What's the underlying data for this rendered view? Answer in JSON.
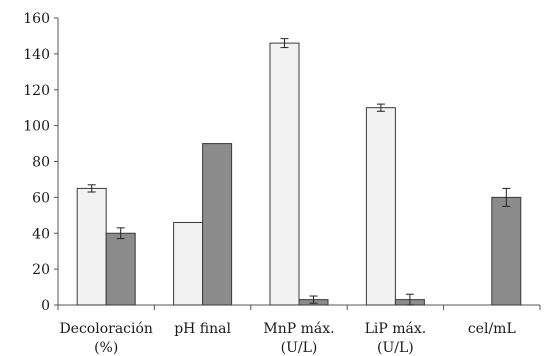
{
  "chart_data": {
    "type": "bar",
    "title": "",
    "xlabel": "",
    "ylabel": "",
    "ylim": [
      0,
      160
    ],
    "yticks": [
      0,
      20,
      40,
      60,
      80,
      100,
      120,
      140,
      160
    ],
    "grid": false,
    "legend": "none",
    "categories": [
      [
        "Decoloración",
        "(%)"
      ],
      [
        "pH final"
      ],
      [
        "MnP máx.",
        "(U/L)"
      ],
      [
        "LiP máx.",
        "(U/L)"
      ],
      [
        "cel/mL"
      ]
    ],
    "series": [
      {
        "color": "#f2f2f2",
        "values": [
          65,
          46,
          146,
          110,
          null
        ],
        "errors": [
          2,
          null,
          2.5,
          2,
          null
        ]
      },
      {
        "color": "#8c8c8c",
        "values": [
          40,
          90,
          3,
          3,
          60
        ],
        "errors": [
          3,
          null,
          2,
          3,
          5
        ]
      }
    ]
  }
}
